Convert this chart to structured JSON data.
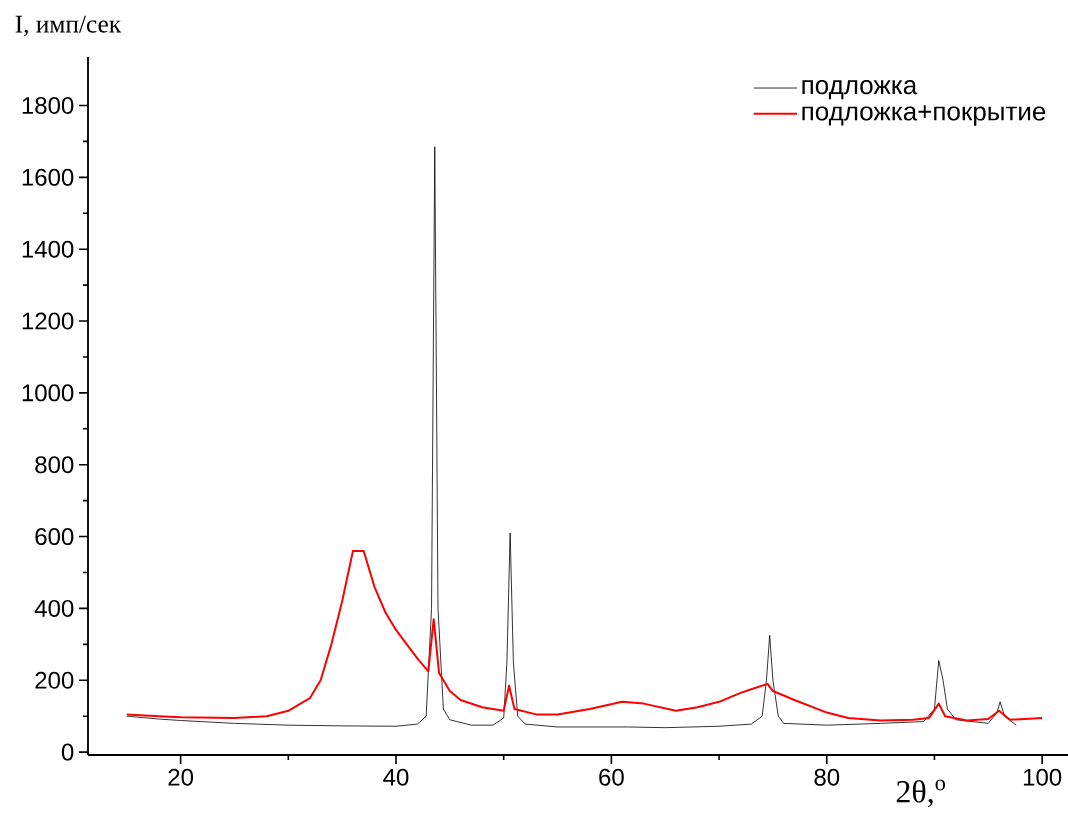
{
  "chart_data": {
    "type": "line",
    "xlabel": "2θ,$^{o}$",
    "ylabel": "I, имп/сек",
    "xlim": [
      11.4,
      102.4
    ],
    "ylim": [
      -8,
      1935
    ],
    "xticks": [
      20,
      40,
      60,
      80,
      100
    ],
    "yticks": [
      0,
      200,
      400,
      600,
      800,
      1000,
      1200,
      1400,
      1600,
      1800
    ],
    "legend": "top right",
    "series": [
      {
        "name": "подложка",
        "color": "#000000",
        "x": [
          15,
          18,
          20,
          25,
          30,
          35,
          40,
          42,
          42.8,
          43.3,
          43.6,
          43.9,
          44.4,
          45,
          47,
          49,
          50,
          50.3,
          50.6,
          50.9,
          51.3,
          52,
          55,
          61.5,
          65,
          70,
          73,
          74,
          74.4,
          74.7,
          75,
          75.5,
          76,
          80,
          85,
          89,
          90,
          90.4,
          90.8,
          91.2,
          92,
          95,
          95.8,
          96.1,
          96.5,
          97.6
        ],
        "values": [
          100,
          92,
          88,
          80,
          75,
          73,
          72,
          78,
          100,
          400,
          1685,
          400,
          120,
          90,
          75,
          75,
          95,
          250,
          610,
          250,
          100,
          78,
          70,
          70,
          68,
          72,
          78,
          100,
          200,
          325,
          200,
          100,
          80,
          75,
          80,
          85,
          120,
          255,
          200,
          120,
          90,
          80,
          110,
          140,
          100,
          75
        ]
      },
      {
        "name": "подложка+покрытие",
        "color": "#ff0000",
        "x": [
          15,
          18,
          20,
          25,
          28,
          30,
          32,
          33,
          34,
          35,
          36,
          37,
          38,
          39,
          40,
          41,
          42,
          43,
          43.5,
          44,
          45,
          46,
          48,
          50,
          50.5,
          51,
          53,
          55,
          58,
          61,
          63,
          66,
          68,
          70,
          72,
          73,
          74.5,
          75,
          77,
          80,
          82,
          85,
          88,
          89.5,
          90.4,
          91,
          93,
          95,
          96,
          97,
          100
        ],
        "values": [
          105,
          100,
          97,
          95,
          100,
          115,
          150,
          200,
          300,
          420,
          560,
          560,
          460,
          390,
          340,
          300,
          260,
          225,
          370,
          220,
          170,
          145,
          125,
          115,
          185,
          120,
          105,
          105,
          120,
          140,
          135,
          115,
          125,
          140,
          165,
          175,
          190,
          170,
          145,
          110,
          95,
          88,
          90,
          95,
          135,
          100,
          88,
          92,
          115,
          90,
          95
        ]
      }
    ]
  }
}
